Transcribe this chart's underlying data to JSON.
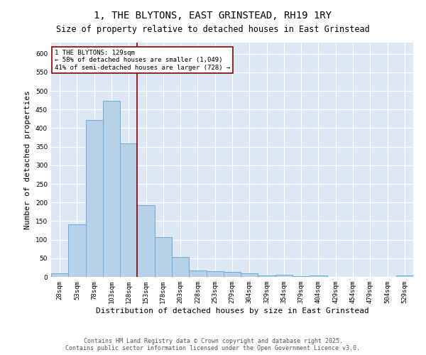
{
  "title": "1, THE BLYTONS, EAST GRINSTEAD, RH19 1RY",
  "subtitle": "Size of property relative to detached houses in East Grinstead",
  "xlabel": "Distribution of detached houses by size in East Grinstead",
  "ylabel": "Number of detached properties",
  "categories": [
    "28sqm",
    "53sqm",
    "78sqm",
    "103sqm",
    "128sqm",
    "153sqm",
    "178sqm",
    "203sqm",
    "228sqm",
    "253sqm",
    "279sqm",
    "304sqm",
    "329sqm",
    "354sqm",
    "379sqm",
    "404sqm",
    "429sqm",
    "454sqm",
    "479sqm",
    "504sqm",
    "529sqm"
  ],
  "values": [
    10,
    142,
    422,
    473,
    358,
    192,
    107,
    53,
    18,
    15,
    13,
    10,
    4,
    5,
    1,
    3,
    0,
    0,
    0,
    0,
    4
  ],
  "bar_color": "#b8d0e8",
  "bar_edge_color": "#6aaad4",
  "property_line_color": "#8b0000",
  "property_line_x": 4.5,
  "annotation_text": "1 THE BLYTONS: 129sqm\n← 58% of detached houses are smaller (1,049)\n41% of semi-detached houses are larger (728) →",
  "annotation_box_facecolor": "#ffffff",
  "annotation_border_color": "#8b0000",
  "ylim": [
    0,
    630
  ],
  "yticks": [
    0,
    50,
    100,
    150,
    200,
    250,
    300,
    350,
    400,
    450,
    500,
    550,
    600
  ],
  "plot_bg": "#dce9f5",
  "fig_bg": "#ffffff",
  "title_fontsize": 10,
  "subtitle_fontsize": 8.5,
  "tick_fontsize": 6.5,
  "label_fontsize": 8,
  "annotation_fontsize": 6.5,
  "footer_fontsize": 6,
  "footer_text": "Contains HM Land Registry data © Crown copyright and database right 2025.\nContains public sector information licensed under the Open Government Licence v3.0."
}
